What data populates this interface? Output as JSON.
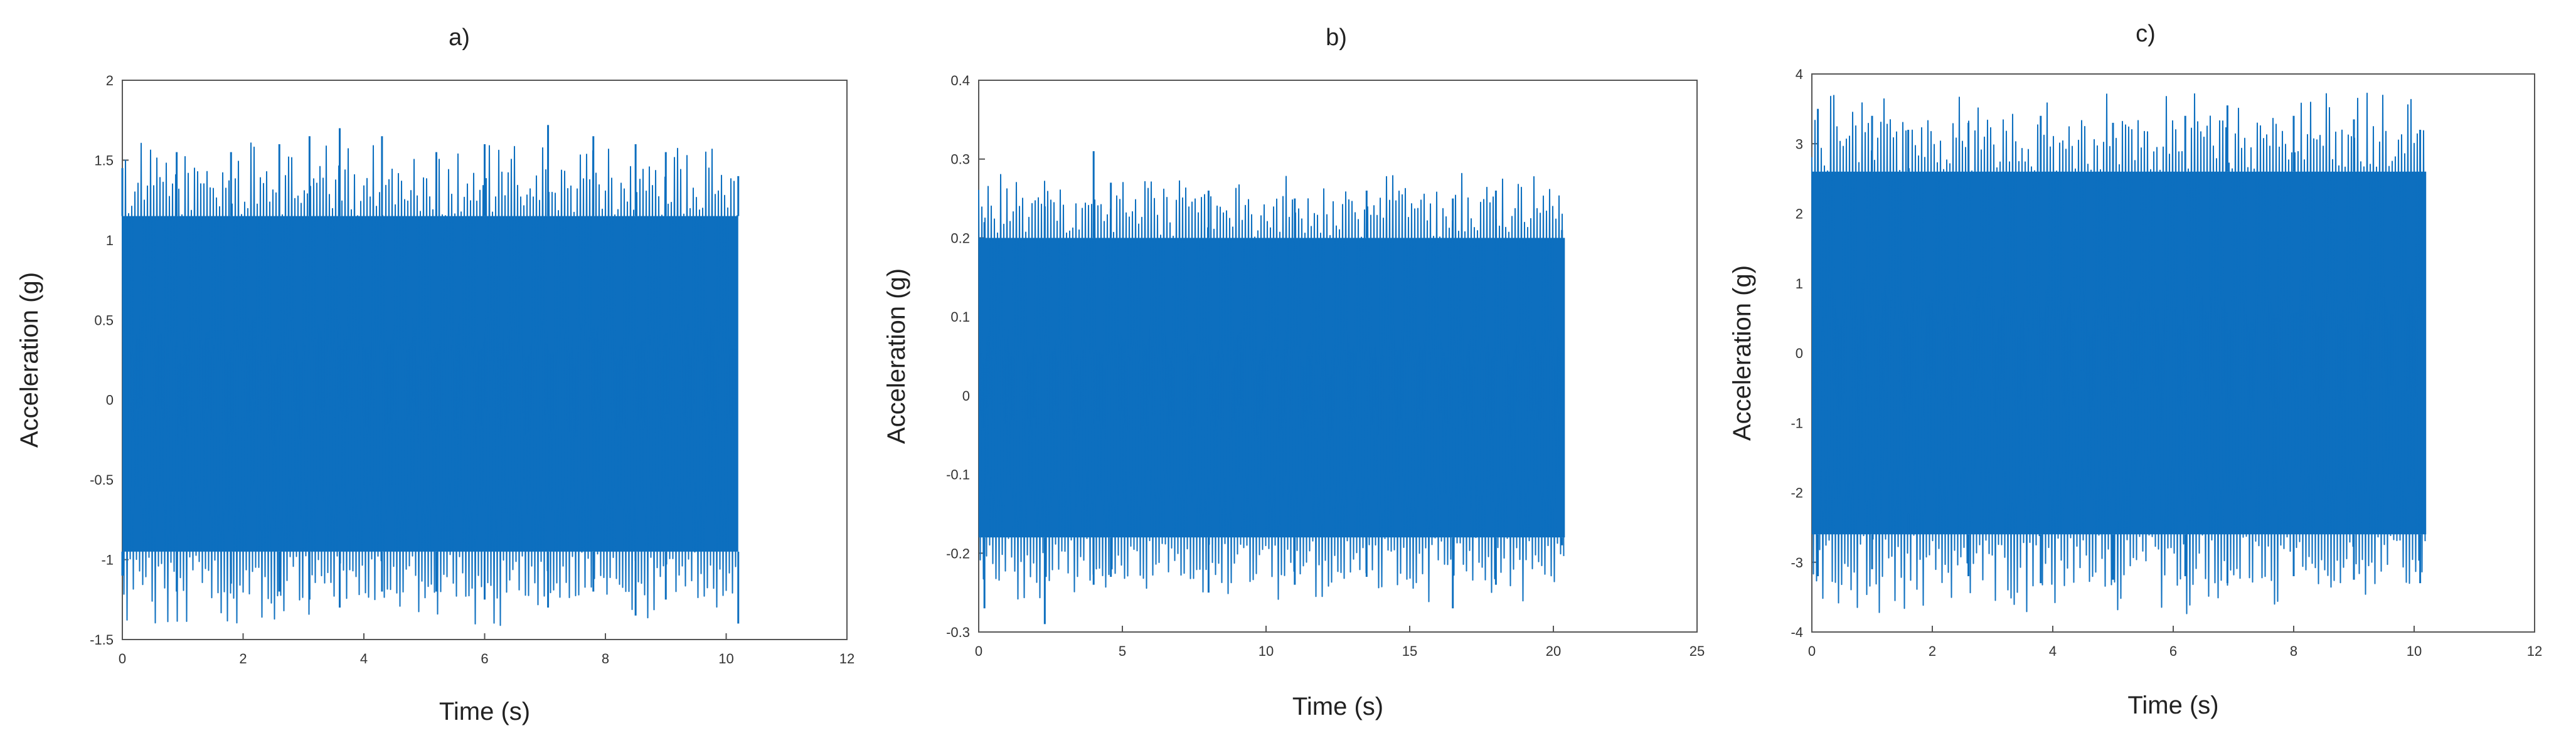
{
  "chart_data": [
    {
      "type": "line",
      "title": "a)",
      "xlabel": "Time (s)",
      "ylabel": "Acceleration (g)",
      "xlim": [
        0,
        12
      ],
      "ylim": [
        -1.5,
        2
      ],
      "xticks": [
        0,
        2,
        4,
        6,
        8,
        10,
        12
      ],
      "yticks": [
        -1.5,
        -1,
        -0.5,
        0,
        0.5,
        1,
        1.5,
        2
      ],
      "grid": false,
      "color": "#0d6fbf",
      "series": [
        {
          "t_end": 10.2,
          "typical_envelope": [
            -0.95,
            1.15
          ],
          "x": [
            0,
            0.9,
            1.8,
            2.6,
            3.1,
            3.6,
            4.3,
            5.2,
            6.0,
            7.05,
            7.8,
            8.5,
            9.0,
            10.2
          ],
          "y_max": [
            1.45,
            1.55,
            1.55,
            1.6,
            1.65,
            1.7,
            1.65,
            1.55,
            1.6,
            1.72,
            1.65,
            1.6,
            1.55,
            1.4
          ],
          "y_min": [
            -1.1,
            -1.2,
            -1.15,
            -1.2,
            -1.25,
            -1.3,
            -1.2,
            -1.2,
            -1.25,
            -1.3,
            -1.2,
            -1.35,
            -1.25,
            -1.4
          ]
        }
      ]
    },
    {
      "type": "line",
      "title": "b)",
      "xlabel": "Time (s)",
      "ylabel": "Acceleration (g)",
      "xlim": [
        0,
        25
      ],
      "ylim": [
        -0.3,
        0.4
      ],
      "xticks": [
        0,
        5,
        10,
        15,
        20,
        25
      ],
      "yticks": [
        -0.3,
        -0.2,
        -0.1,
        0,
        0.1,
        0.2,
        0.3,
        0.4
      ],
      "grid": false,
      "color": "#0d6fbf",
      "series": [
        {
          "t_end": 20.4,
          "typical_envelope": [
            -0.18,
            0.2
          ],
          "x": [
            0.2,
            2.3,
            4.0,
            4.6,
            8.0,
            11.0,
            13.5,
            16.5,
            18.0,
            20.3
          ],
          "y_max": [
            0.22,
            0.24,
            0.31,
            0.27,
            0.26,
            0.25,
            0.26,
            0.25,
            0.26,
            0.21
          ],
          "y_min": [
            -0.27,
            -0.29,
            -0.24,
            -0.23,
            -0.25,
            -0.24,
            -0.23,
            -0.27,
            -0.24,
            -0.19
          ]
        }
      ]
    },
    {
      "type": "line",
      "title": "c)",
      "xlabel": "Time (s)",
      "ylabel": "Acceleration (g)",
      "xlim": [
        0,
        12
      ],
      "ylim": [
        -4,
        4
      ],
      "xticks": [
        0,
        2,
        4,
        6,
        8,
        10,
        12
      ],
      "yticks": [
        -4,
        -3,
        -2,
        -1,
        0,
        1,
        2,
        3,
        4
      ],
      "grid": false,
      "color": "#0d6fbf",
      "series": [
        {
          "t_end": 10.2,
          "typical_envelope": [
            -2.6,
            2.6
          ],
          "x": [
            0.1,
            1.0,
            1.6,
            2.6,
            3.8,
            5.0,
            6.2,
            6.9,
            8.0,
            9.0,
            10.1
          ],
          "y_max": [
            3.5,
            3.4,
            3.2,
            3.3,
            3.4,
            3.3,
            3.4,
            3.55,
            3.4,
            3.35,
            3.2
          ],
          "y_min": [
            -3.2,
            -3.1,
            -2.3,
            -3.2,
            -3.3,
            -3.25,
            -3.2,
            -3.3,
            -3.2,
            -3.25,
            -3.3
          ]
        }
      ]
    }
  ]
}
